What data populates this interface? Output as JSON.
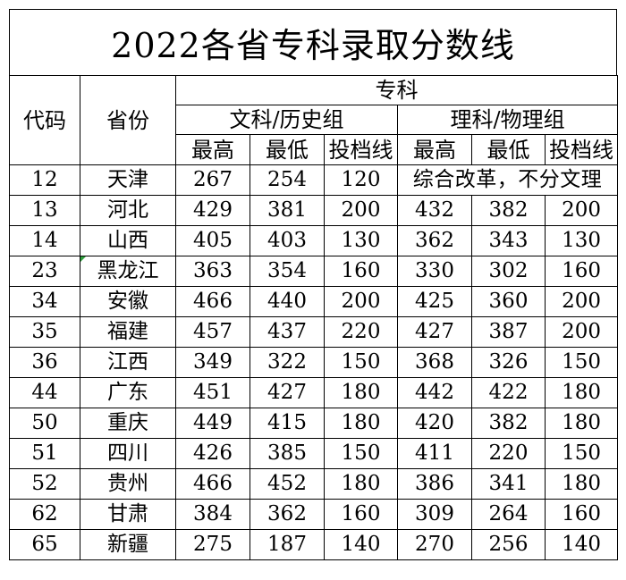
{
  "title": "2022各省专科录取分数线",
  "headers": {
    "code": "代码",
    "province": "省份",
    "category": "专科",
    "group_arts": "文科/历史组",
    "group_science": "理科/物理组",
    "sub": [
      "最高",
      "最低",
      "投档线",
      "最高",
      "最低",
      "投档线"
    ]
  },
  "rows": [
    {
      "code": "12",
      "province": "天津",
      "values": [
        "267",
        "254",
        "120"
      ],
      "note": "综合改革，不分文理"
    },
    {
      "code": "13",
      "province": "河北",
      "values": [
        "429",
        "381",
        "200",
        "432",
        "382",
        "200"
      ]
    },
    {
      "code": "14",
      "province": "山西",
      "values": [
        "405",
        "403",
        "130",
        "362",
        "343",
        "130"
      ]
    },
    {
      "code": "23",
      "province": "黑龙江",
      "values": [
        "363",
        "354",
        "160",
        "330",
        "302",
        "160"
      ]
    },
    {
      "code": "34",
      "province": "安徽",
      "values": [
        "466",
        "440",
        "200",
        "425",
        "360",
        "200"
      ]
    },
    {
      "code": "35",
      "province": "福建",
      "values": [
        "457",
        "437",
        "220",
        "427",
        "387",
        "200"
      ]
    },
    {
      "code": "36",
      "province": "江西",
      "values": [
        "349",
        "322",
        "150",
        "368",
        "326",
        "150"
      ]
    },
    {
      "code": "44",
      "province": "广东",
      "values": [
        "451",
        "427",
        "180",
        "442",
        "422",
        "180"
      ]
    },
    {
      "code": "50",
      "province": "重庆",
      "values": [
        "449",
        "415",
        "180",
        "420",
        "382",
        "180"
      ]
    },
    {
      "code": "51",
      "province": "四川",
      "values": [
        "426",
        "385",
        "150",
        "411",
        "220",
        "150"
      ]
    },
    {
      "code": "52",
      "province": "贵州",
      "values": [
        "466",
        "452",
        "180",
        "386",
        "341",
        "180"
      ]
    },
    {
      "code": "62",
      "province": "甘肃",
      "values": [
        "384",
        "362",
        "160",
        "309",
        "264",
        "160"
      ]
    },
    {
      "code": "65",
      "province": "新疆",
      "values": [
        "275",
        "187",
        "140",
        "270",
        "256",
        "140"
      ]
    }
  ],
  "colors": {
    "border": "#000000",
    "cell_marker": "#2e9e3c"
  }
}
